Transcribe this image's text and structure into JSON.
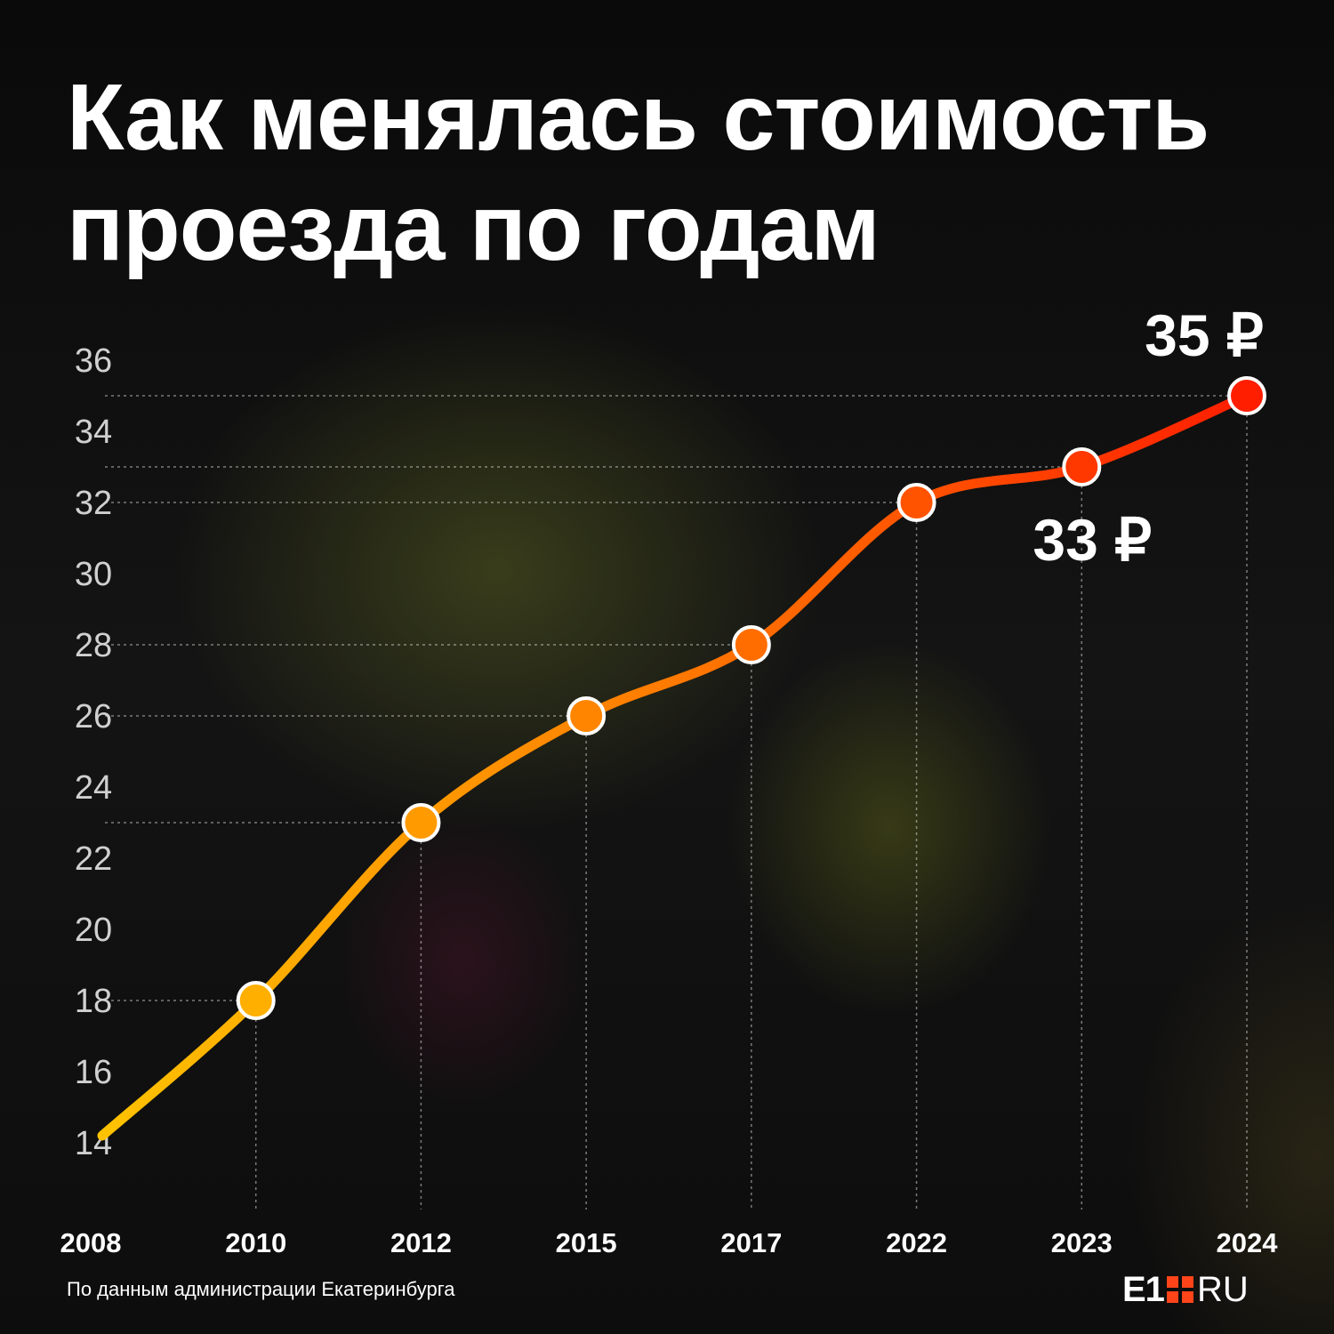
{
  "title_lines": [
    "Как менялась стоимость",
    "проезда по годам"
  ],
  "source": "По данным администрации Екатеринбурга",
  "logo": {
    "e1": "E1",
    "ru": "RU"
  },
  "colors": {
    "start": "#ffc300",
    "middle": "#ff7a00",
    "end": "#ff1e00",
    "text": "#ffffff",
    "axis_text": "#d0d0d0"
  },
  "chart_data": {
    "type": "line",
    "title": "Как менялась стоимость проезда по годам",
    "categories": [
      "2008",
      "2010",
      "2012",
      "2015",
      "2017",
      "2022",
      "2023",
      "2024"
    ],
    "values": [
      14,
      18,
      23,
      26,
      28,
      32,
      33,
      35
    ],
    "marked_points": [
      false,
      true,
      true,
      true,
      true,
      true,
      true,
      true
    ],
    "ylim": [
      13,
      37
    ],
    "yticks": [
      14,
      16,
      18,
      20,
      22,
      24,
      26,
      28,
      30,
      32,
      34,
      36
    ],
    "xlabel": "",
    "ylabel": "",
    "grid": "dotted guide lines from each point to the axes",
    "annotations": [
      {
        "category": "2024",
        "text": "35 ₽",
        "position": "above"
      },
      {
        "category": "2023",
        "text": "33 ₽",
        "position": "below"
      }
    ]
  }
}
